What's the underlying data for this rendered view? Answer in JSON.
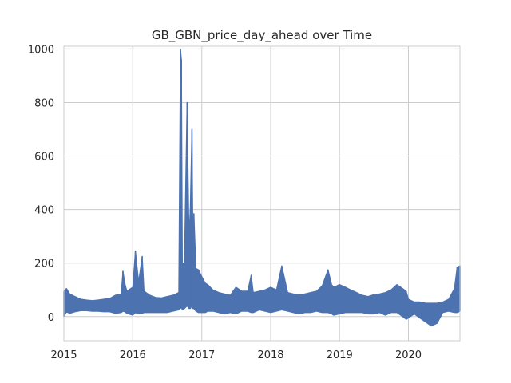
{
  "chart_data": {
    "type": "line",
    "title": "GB_GBN_price_day_ahead over Time",
    "xlabel": "",
    "ylabel": "",
    "x_ticks": [
      "2015",
      "2016",
      "2017",
      "2018",
      "2019",
      "2020"
    ],
    "y_ticks": [
      "0",
      "200",
      "400",
      "600",
      "800",
      "1000"
    ],
    "xlim": [
      "2015-01-01",
      "2020-09-30"
    ],
    "ylim": [
      -90,
      1010
    ],
    "grid": true,
    "colors": {
      "line": "#4c72b0",
      "grid": "#cccccc",
      "axes": "#cccccc"
    },
    "series": [
      {
        "x": [
          "2015-01-01",
          "2015-01-15",
          "2015-02-01",
          "2015-03-01",
          "2015-04-01",
          "2015-05-01",
          "2015-06-01",
          "2015-07-01",
          "2015-08-01",
          "2015-09-01",
          "2015-10-01",
          "2015-11-01",
          "2015-11-10",
          "2015-11-20",
          "2015-12-01",
          "2016-01-01",
          "2016-01-15",
          "2016-02-01",
          "2016-02-20",
          "2016-03-01",
          "2016-04-01",
          "2016-05-01",
          "2016-06-01",
          "2016-07-01",
          "2016-08-01",
          "2016-09-01",
          "2016-09-10",
          "2016-09-15",
          "2016-09-20",
          "2016-10-01",
          "2016-10-15",
          "2016-10-25",
          "2016-11-01",
          "2016-11-10",
          "2016-11-15",
          "2016-11-20",
          "2016-12-01",
          "2016-12-15",
          "2017-01-01",
          "2017-01-20",
          "2017-02-01",
          "2017-03-01",
          "2017-04-01",
          "2017-05-01",
          "2017-06-01",
          "2017-07-01",
          "2017-08-01",
          "2017-09-01",
          "2017-09-20",
          "2017-10-01",
          "2017-11-01",
          "2017-12-01",
          "2018-01-01",
          "2018-02-01",
          "2018-03-01",
          "2018-04-01",
          "2018-05-01",
          "2018-06-01",
          "2018-07-01",
          "2018-08-01",
          "2018-09-01",
          "2018-10-01",
          "2018-11-01",
          "2018-11-20",
          "2018-12-01",
          "2019-01-01",
          "2019-02-01",
          "2019-03-01",
          "2019-04-01",
          "2019-05-01",
          "2019-06-01",
          "2019-07-01",
          "2019-08-01",
          "2019-09-01",
          "2019-10-01",
          "2019-11-01",
          "2019-12-01",
          "2019-12-20",
          "2020-01-01",
          "2020-02-01",
          "2020-03-01",
          "2020-04-01",
          "2020-05-01",
          "2020-06-01",
          "2020-07-01",
          "2020-08-01",
          "2020-09-01",
          "2020-09-15",
          "2020-09-30"
        ],
        "high": [
          95,
          105,
          85,
          75,
          65,
          62,
          60,
          62,
          65,
          68,
          80,
          85,
          170,
          125,
          95,
          110,
          245,
          130,
          225,
          95,
          80,
          72,
          70,
          75,
          80,
          90,
          1000,
          960,
          200,
          200,
          800,
          300,
          400,
          700,
          290,
          385,
          180,
          175,
          150,
          125,
          120,
          100,
          90,
          85,
          80,
          110,
          95,
          95,
          155,
          90,
          95,
          100,
          110,
          100,
          190,
          90,
          85,
          82,
          85,
          90,
          95,
          115,
          175,
          120,
          110,
          120,
          110,
          100,
          90,
          80,
          75,
          82,
          85,
          90,
          100,
          120,
          105,
          95,
          65,
          55,
          55,
          50,
          50,
          50,
          55,
          65,
          105,
          185,
          190
        ],
        "low": [
          0,
          18,
          12,
          18,
          22,
          22,
          20,
          20,
          18,
          18,
          12,
          15,
          20,
          18,
          12,
          5,
          15,
          10,
          12,
          15,
          15,
          15,
          15,
          15,
          20,
          25,
          30,
          35,
          25,
          30,
          40,
          30,
          30,
          40,
          30,
          30,
          20,
          15,
          15,
          15,
          20,
          20,
          15,
          10,
          15,
          10,
          20,
          20,
          15,
          15,
          25,
          20,
          15,
          20,
          25,
          20,
          15,
          10,
          15,
          15,
          20,
          15,
          15,
          10,
          5,
          10,
          15,
          15,
          15,
          15,
          10,
          10,
          15,
          5,
          15,
          15,
          0,
          -10,
          -5,
          10,
          -5,
          -20,
          -35,
          -25,
          15,
          20,
          15,
          15,
          20
        ]
      }
    ]
  }
}
